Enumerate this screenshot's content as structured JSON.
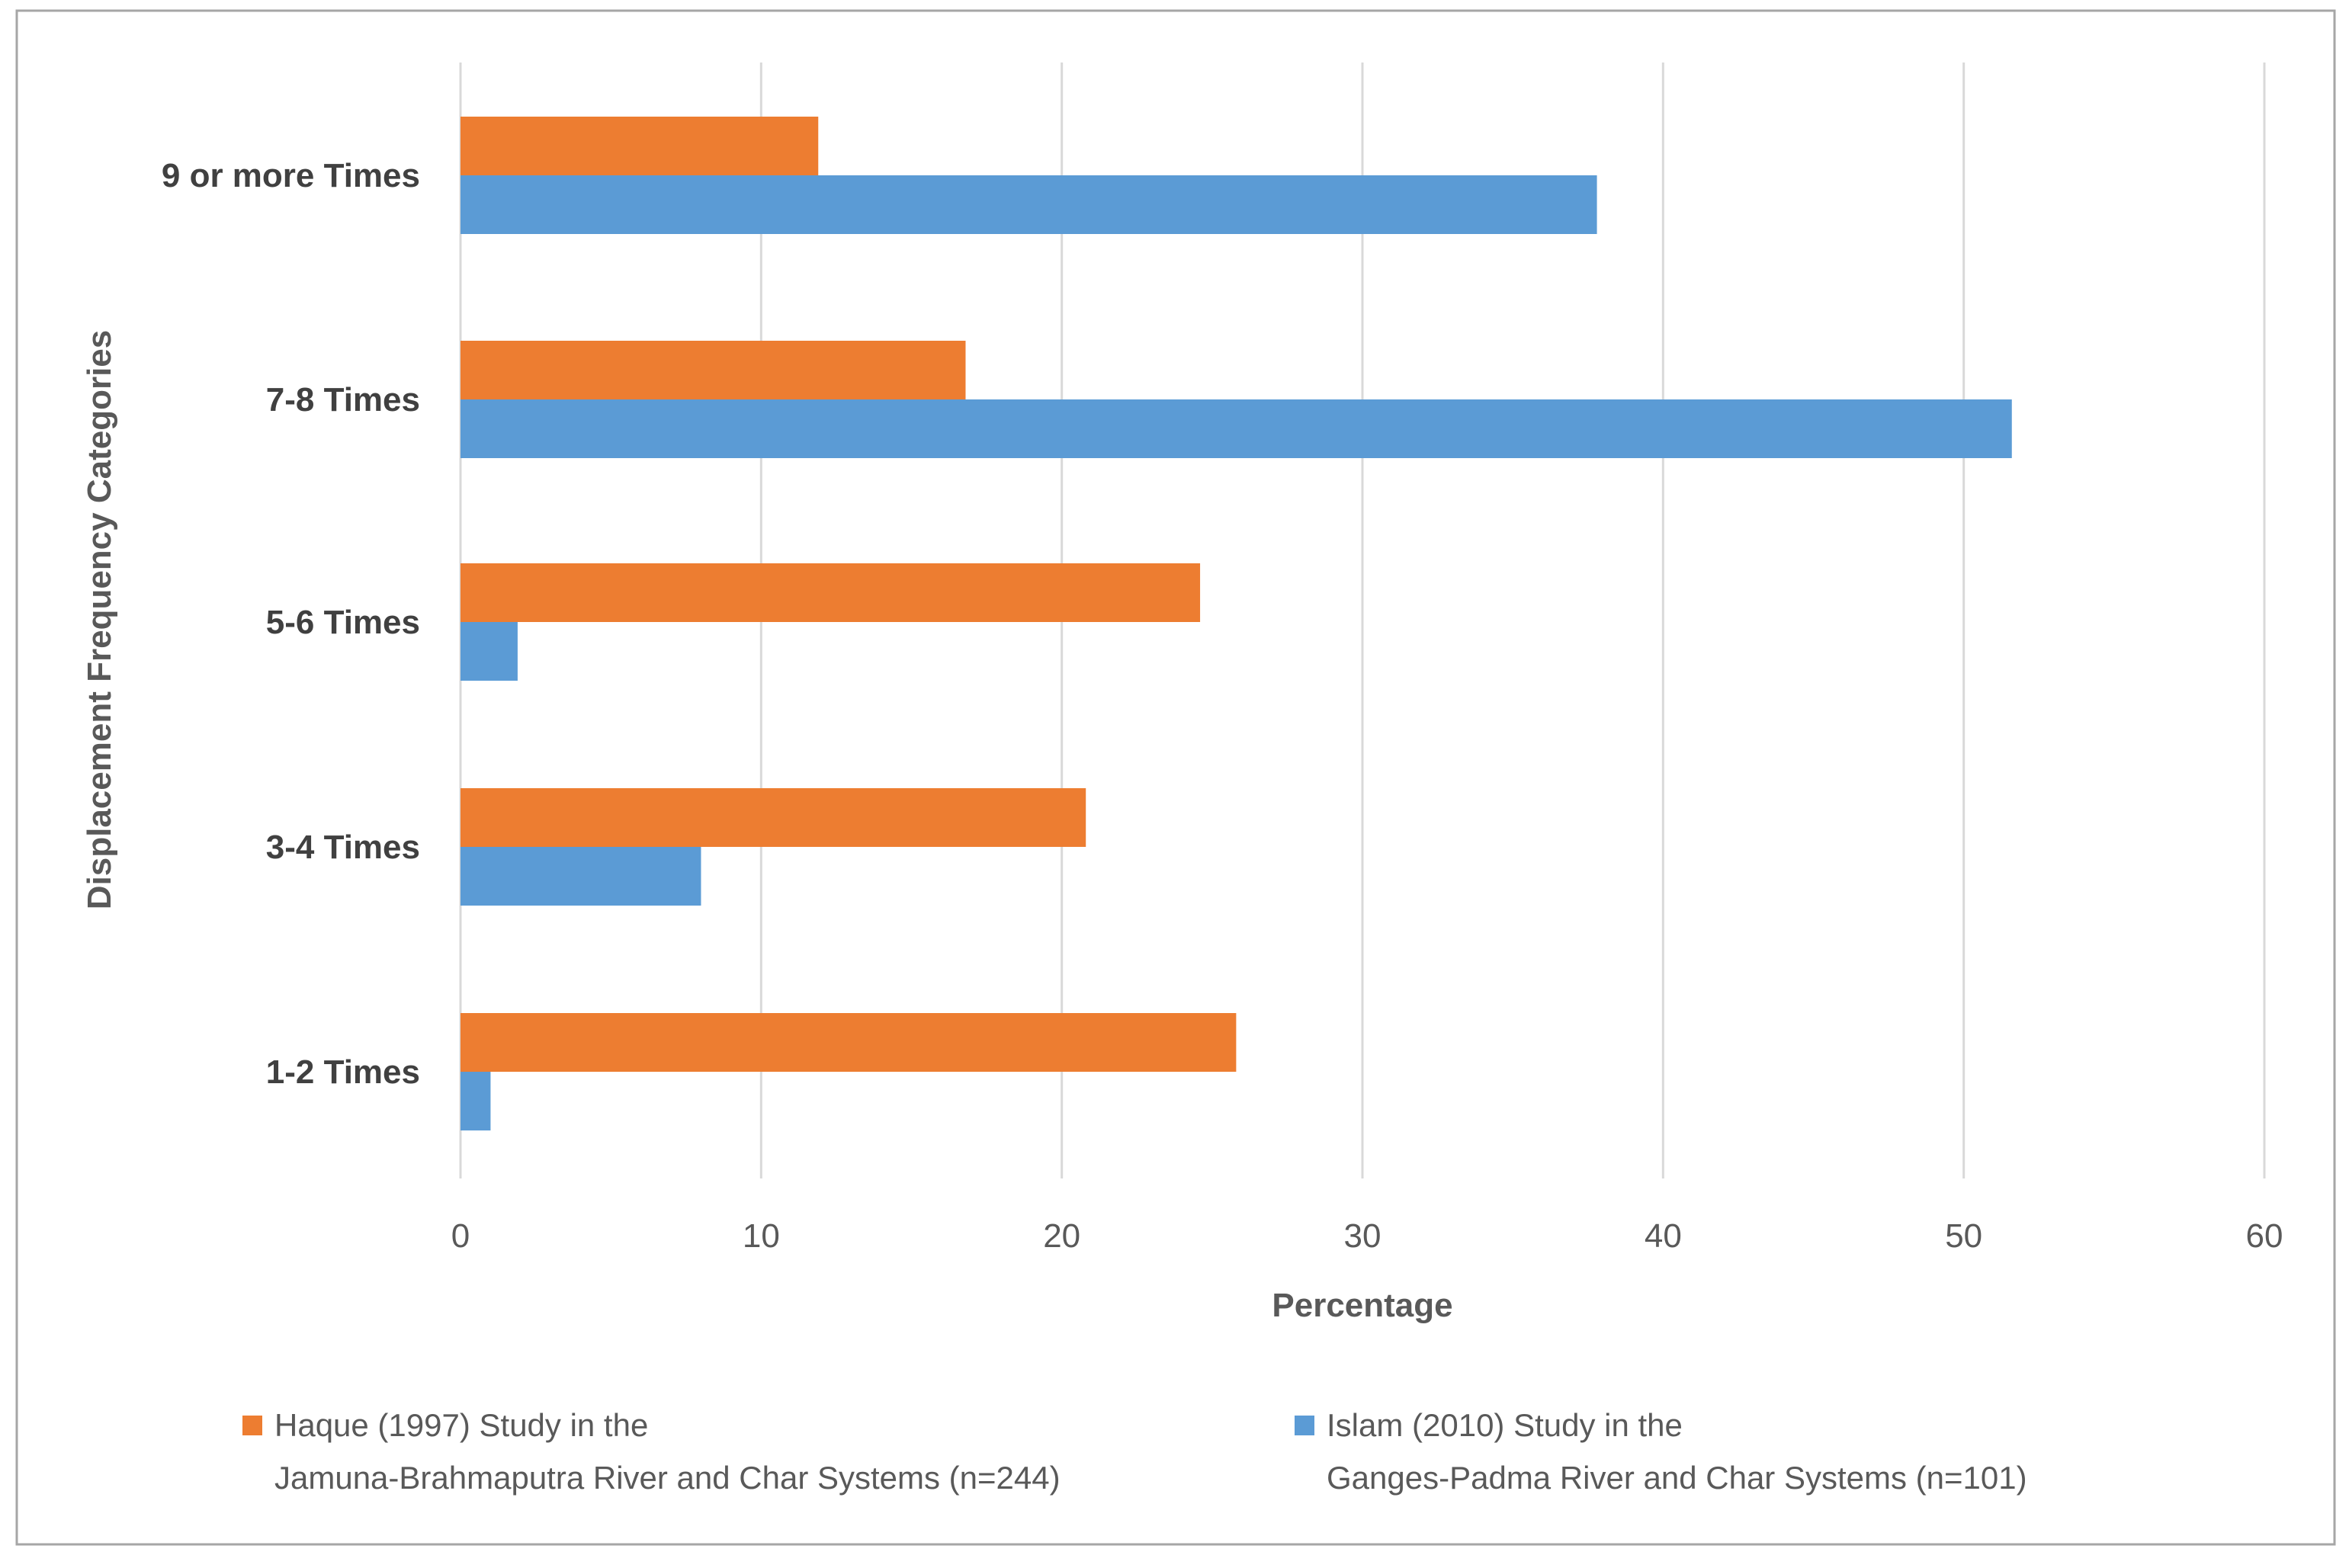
{
  "chart_data": {
    "type": "bar",
    "orientation": "horizontal",
    "title": "",
    "xlabel": "Percentage",
    "ylabel": "Displacement Frequency Categories",
    "xlim": [
      0,
      60
    ],
    "xticks": [
      0,
      10,
      20,
      30,
      40,
      50,
      60
    ],
    "grid": "vertical",
    "legend_position": "bottom",
    "categories": [
      "9 or more Times",
      "7-8 Times",
      "5-6 Times",
      "3-4 Times",
      "1-2 Times"
    ],
    "series": [
      {
        "name": "Haque (1997) Study in the Jamuna-Brahmaputra River and Char Systems (n=244)",
        "legend_lines": [
          "Haque (1997) Study in the",
          "Jamuna-Brahmaputra River and Char Systems (n=244)"
        ],
        "color": "#ED7D31",
        "values": [
          11.9,
          16.8,
          24.6,
          20.8,
          25.8
        ]
      },
      {
        "name": "Islam (2010) Study in the Ganges-Padma River and Char Systems (n=101)",
        "legend_lines": [
          "Islam (2010) Study in the",
          "Ganges-Padma River and Char Systems (n=101)"
        ],
        "color": "#5B9BD5",
        "values": [
          37.8,
          51.6,
          1.9,
          8.0,
          1.0
        ]
      }
    ]
  },
  "colors": {
    "gridline": "#d9d9d9",
    "frame": "#a6a6a6",
    "axis_text": "#595959",
    "category_text": "#404040"
  }
}
